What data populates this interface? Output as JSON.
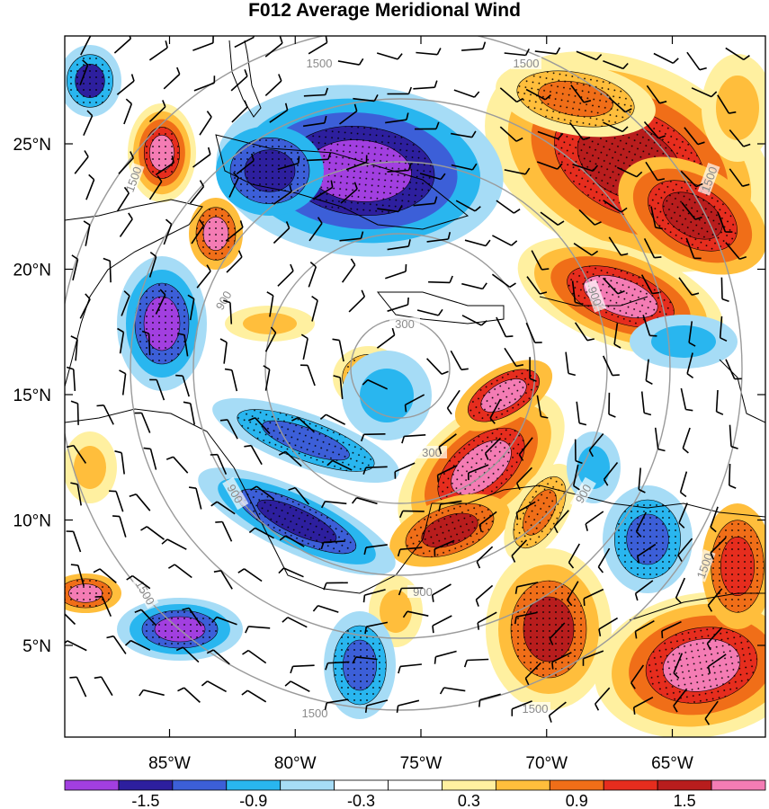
{
  "chart_data": {
    "type": "heatmap",
    "title": "F012 Average Meridional Wind",
    "x_axis": {
      "ticks": [
        "85°W",
        "80°W",
        "75°W",
        "70°W",
        "65°W"
      ],
      "values": [
        -85,
        -80,
        -75,
        -70,
        -65
      ]
    },
    "y_axis": {
      "ticks": [
        "25°N",
        "20°N",
        "15°N",
        "10°N",
        "5°N"
      ],
      "values": [
        25,
        20,
        15,
        10,
        5
      ]
    },
    "colorbar": {
      "colors": [
        "#a23fe0",
        "#2d1f9e",
        "#3c5fd8",
        "#29b6ef",
        "#a6dcf6",
        "#ffffff",
        "#ffffff",
        "#fff0a0",
        "#ffbe3c",
        "#f06e18",
        "#e62d1e",
        "#b81d1d",
        "#f47cb4"
      ],
      "tick_labels": [
        "-1.5",
        "-0.9",
        "-0.3",
        "0.3",
        "0.9",
        "1.5"
      ]
    },
    "range_rings": {
      "labels": [
        "300",
        "900",
        "1500"
      ],
      "color": "#8a8a8a"
    }
  }
}
